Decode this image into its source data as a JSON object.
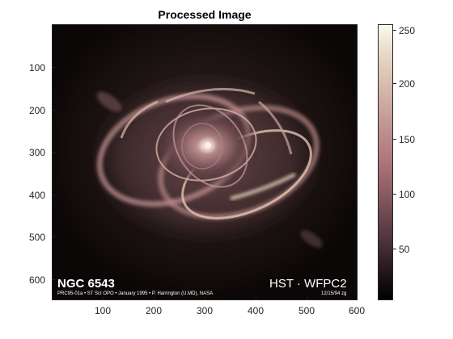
{
  "figure": {
    "title": "Processed Image"
  },
  "image": {
    "caption_left_title": "NGC 6543",
    "caption_left_credit": "PRC95-01a • ST ScI OPO • January 1995 • P. Harrington (U.MD), NASA",
    "caption_right_title": "HST · WFPC2",
    "caption_right_date": "12/15/94 zg"
  },
  "axes": {
    "x_ticks": [
      "100",
      "200",
      "300",
      "400",
      "500",
      "600"
    ],
    "y_ticks": [
      "100",
      "200",
      "300",
      "400",
      "500",
      "600"
    ],
    "xlim": [
      0.5,
      600.5
    ],
    "ylim": [
      0.5,
      650.5
    ],
    "y_reversed": true
  },
  "colorbar": {
    "ticks": [
      "50",
      "100",
      "150",
      "200",
      "250"
    ],
    "range": [
      0,
      255
    ],
    "colormap": "pink"
  }
}
